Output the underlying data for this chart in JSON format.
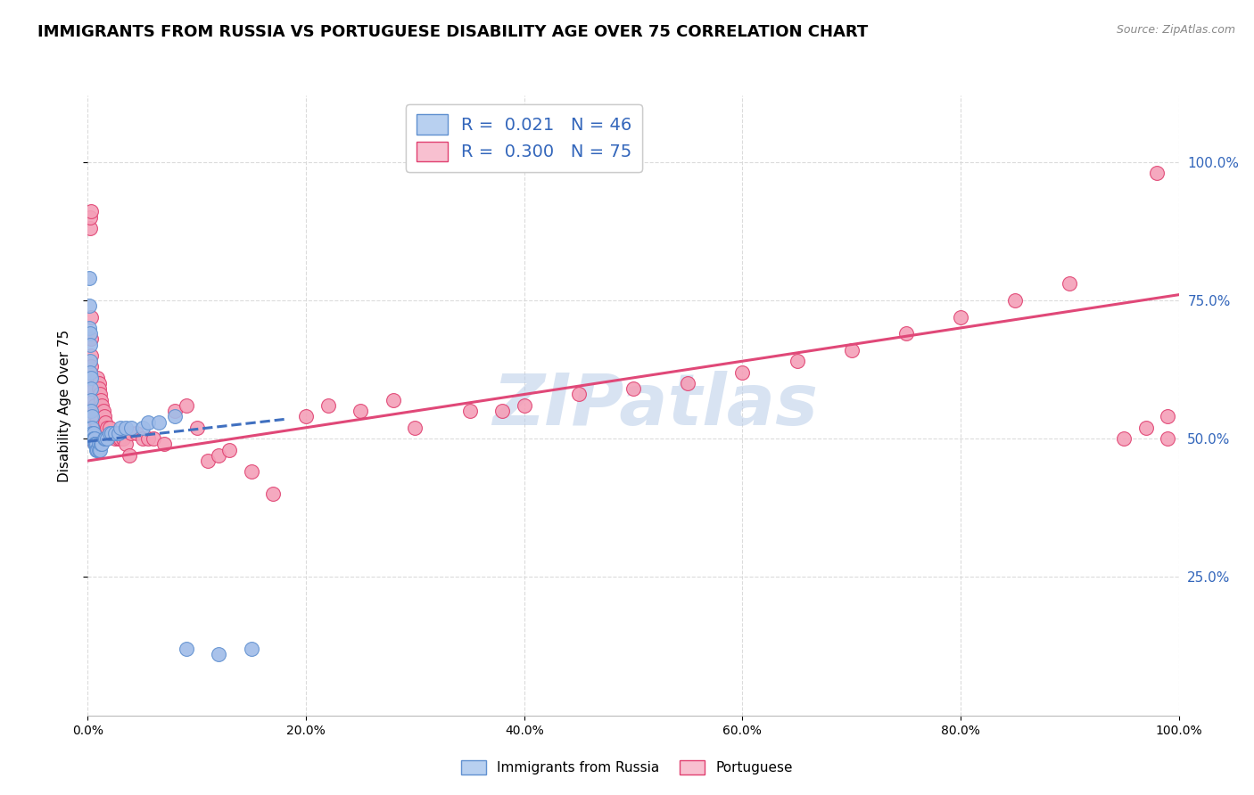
{
  "title": "IMMIGRANTS FROM RUSSIA VS PORTUGUESE DISABILITY AGE OVER 75 CORRELATION CHART",
  "source": "Source: ZipAtlas.com",
  "ylabel": "Disability Age Over 75",
  "x_tick_labels": [
    "0.0%",
    "20.0%",
    "40.0%",
    "60.0%",
    "80.0%",
    "100.0%"
  ],
  "x_tick_vals": [
    0.0,
    0.2,
    0.4,
    0.6,
    0.8,
    1.0
  ],
  "y_tick_labels": [
    "25.0%",
    "50.0%",
    "75.0%",
    "100.0%"
  ],
  "y_tick_vals": [
    0.25,
    0.5,
    0.75,
    1.0
  ],
  "legend1_label": "R =  0.021   N = 46",
  "legend2_label": "R =  0.300   N = 75",
  "legend1_fill": "#b8d0f0",
  "legend2_fill": "#f8c0d0",
  "series1_name": "Immigrants from Russia",
  "series2_name": "Portuguese",
  "series1_dot_color": "#a0bce8",
  "series1_edge_color": "#6090d0",
  "series2_dot_color": "#f4a0b8",
  "series2_edge_color": "#e04070",
  "series1_line_color": "#4070c0",
  "series2_line_color": "#e04878",
  "watermark": "ZIPatlas",
  "watermark_color": "#b8cce8",
  "background_color": "#ffffff",
  "grid_color": "#d8d8d8",
  "title_fontsize": 13,
  "axis_label_fontsize": 11,
  "tick_fontsize": 10,
  "right_tick_color": "#3366bb",
  "ylim": [
    0.0,
    1.12
  ],
  "xlim": [
    0.0,
    1.0
  ],
  "series1_x": [
    0.001,
    0.001,
    0.001,
    0.002,
    0.002,
    0.002,
    0.002,
    0.003,
    0.003,
    0.003,
    0.003,
    0.004,
    0.004,
    0.004,
    0.005,
    0.005,
    0.005,
    0.006,
    0.006,
    0.007,
    0.007,
    0.008,
    0.008,
    0.009,
    0.01,
    0.01,
    0.011,
    0.012,
    0.013,
    0.015,
    0.016,
    0.018,
    0.02,
    0.022,
    0.025,
    0.028,
    0.03,
    0.035,
    0.04,
    0.05,
    0.055,
    0.065,
    0.08,
    0.09,
    0.12,
    0.15
  ],
  "series1_y": [
    0.79,
    0.74,
    0.7,
    0.69,
    0.67,
    0.64,
    0.62,
    0.61,
    0.59,
    0.57,
    0.55,
    0.54,
    0.52,
    0.51,
    0.51,
    0.5,
    0.5,
    0.5,
    0.49,
    0.49,
    0.49,
    0.49,
    0.48,
    0.48,
    0.49,
    0.48,
    0.48,
    0.49,
    0.49,
    0.5,
    0.5,
    0.5,
    0.51,
    0.51,
    0.51,
    0.51,
    0.52,
    0.52,
    0.52,
    0.52,
    0.53,
    0.53,
    0.54,
    0.12,
    0.11,
    0.12
  ],
  "series2_x": [
    0.001,
    0.001,
    0.002,
    0.002,
    0.002,
    0.003,
    0.003,
    0.003,
    0.003,
    0.003,
    0.004,
    0.004,
    0.005,
    0.005,
    0.006,
    0.006,
    0.007,
    0.007,
    0.008,
    0.008,
    0.009,
    0.01,
    0.01,
    0.011,
    0.012,
    0.013,
    0.014,
    0.015,
    0.016,
    0.018,
    0.02,
    0.022,
    0.025,
    0.028,
    0.03,
    0.032,
    0.035,
    0.038,
    0.04,
    0.045,
    0.05,
    0.055,
    0.06,
    0.07,
    0.08,
    0.09,
    0.1,
    0.11,
    0.12,
    0.13,
    0.15,
    0.17,
    0.2,
    0.22,
    0.25,
    0.28,
    0.3,
    0.35,
    0.38,
    0.4,
    0.45,
    0.5,
    0.55,
    0.6,
    0.65,
    0.7,
    0.75,
    0.8,
    0.85,
    0.9,
    0.95,
    0.97,
    0.98,
    0.99,
    0.99
  ],
  "series2_y": [
    0.5,
    0.5,
    0.5,
    0.88,
    0.9,
    0.91,
    0.72,
    0.68,
    0.65,
    0.63,
    0.61,
    0.59,
    0.59,
    0.57,
    0.56,
    0.55,
    0.54,
    0.53,
    0.53,
    0.52,
    0.61,
    0.6,
    0.59,
    0.58,
    0.57,
    0.56,
    0.55,
    0.54,
    0.53,
    0.52,
    0.52,
    0.51,
    0.5,
    0.5,
    0.5,
    0.5,
    0.49,
    0.47,
    0.51,
    0.51,
    0.5,
    0.5,
    0.5,
    0.49,
    0.55,
    0.56,
    0.52,
    0.46,
    0.47,
    0.48,
    0.44,
    0.4,
    0.54,
    0.56,
    0.55,
    0.57,
    0.52,
    0.55,
    0.55,
    0.56,
    0.58,
    0.59,
    0.6,
    0.62,
    0.64,
    0.66,
    0.69,
    0.72,
    0.75,
    0.78,
    0.5,
    0.52,
    0.98,
    0.5,
    0.54
  ],
  "series1_trendline_x": [
    0.0,
    0.18
  ],
  "series1_trendline_y": [
    0.495,
    0.535
  ],
  "series2_trendline_x": [
    0.0,
    1.0
  ],
  "series2_trendline_y": [
    0.46,
    0.76
  ]
}
